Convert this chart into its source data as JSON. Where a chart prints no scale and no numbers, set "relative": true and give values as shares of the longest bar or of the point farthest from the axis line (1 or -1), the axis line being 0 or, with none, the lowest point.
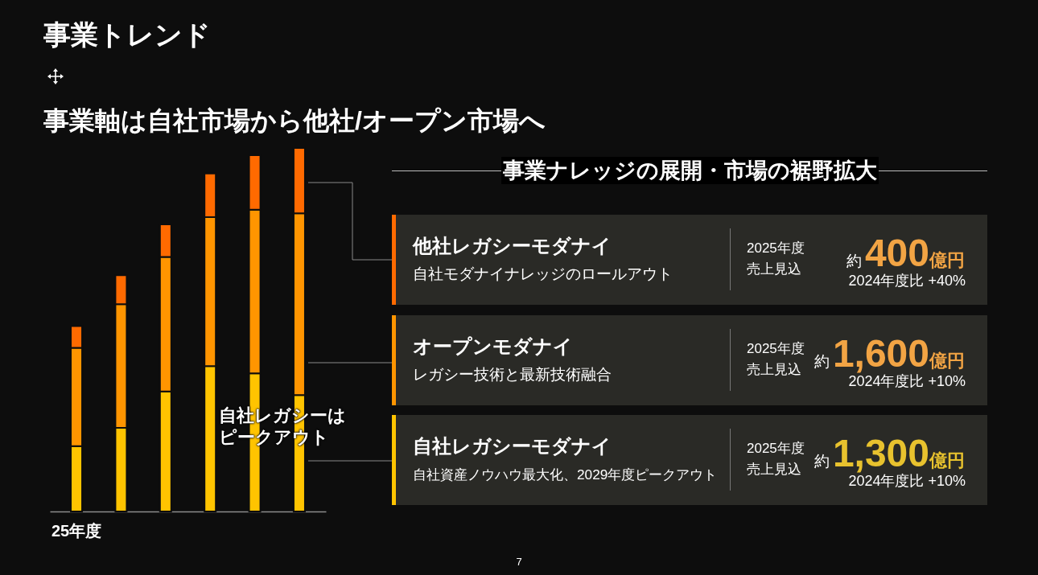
{
  "chart_data": [
    {
      "type": "bar",
      "title": "事業トレンド",
      "subtitle": "事業軸は自社市場から他社/オープン市場へ",
      "categories": [
        "25年度",
        null,
        null,
        null,
        null,
        null
      ],
      "stacked": true,
      "relative": true,
      "series": [
        {
          "color": "#ffc400",
          "values": [
            0.18,
            0.23,
            0.33,
            0.4,
            0.38,
            0.32
          ]
        },
        {
          "color": "#ff9500",
          "values": [
            0.27,
            0.34,
            0.37,
            0.41,
            0.45,
            0.5
          ]
        },
        {
          "color": "#ff6a00",
          "values": [
            0.06,
            0.08,
            0.09,
            0.12,
            0.15,
            0.18
          ]
        }
      ],
      "annotations": [
        "自社レガシーはピークアウト",
        "7"
      ]
    },
    {
      "type": "other",
      "title": "事業ナレッジの展開・市場の裾野拡大",
      "annotations": [
        "他社レガシーモダナイ",
        "自社モダナイナレッジのロールアウト",
        "2025年度",
        "売上見込",
        "約",
        "400",
        "億円",
        "2024年度比 +40%",
        "オープンモダナイ",
        "レガシー技術と最新技術融合",
        "2025年度",
        "売上見込",
        "約",
        "1,600",
        "億円",
        "2024年度比 +10%",
        "自社レガシーモダナイ",
        "自社資産ノウハウ最大化、2029年度ピークアウト",
        "2025年度",
        "売上見込",
        "約",
        "1,300",
        "億円",
        "2024年度比 +10%"
      ]
    }
  ]
}
